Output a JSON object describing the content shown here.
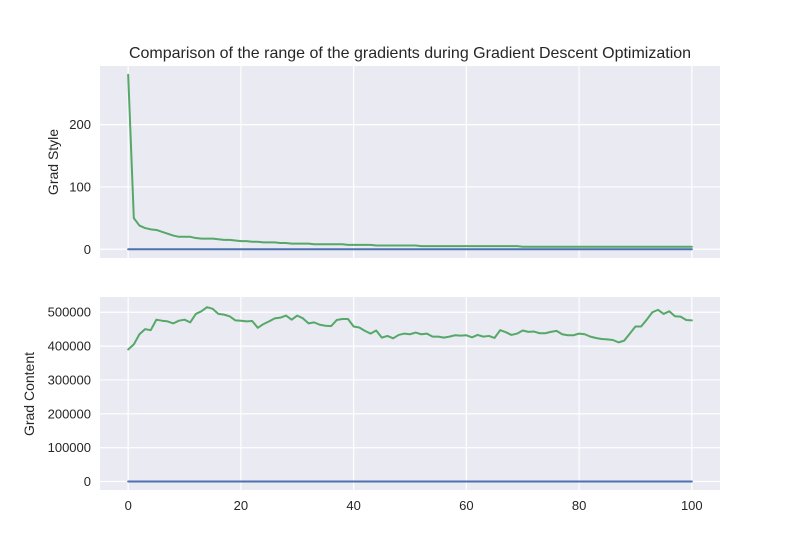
{
  "chart_data": {
    "type": "line",
    "title": "Comparison of the range of the gradients during Gradient Descent Optimization",
    "xlabel": "",
    "xticks": [
      0,
      20,
      40,
      60,
      80,
      100
    ],
    "xlim": [
      -5,
      105
    ],
    "grid": true,
    "colors": {
      "background": "#eaeaf2",
      "grid": "#ffffff",
      "series_near_zero": "#4c72b0",
      "series_grad": "#55a868"
    },
    "subplots": [
      {
        "ylabel": "Grad Style",
        "ylim": [
          -14,
          294
        ],
        "yticks": [
          0,
          100,
          200
        ],
        "series": [
          {
            "color": "#55a868",
            "x": [
              0,
              1,
              2,
              3,
              4,
              5,
              6,
              7,
              8,
              9,
              10,
              11,
              12,
              13,
              14,
              15,
              16,
              17,
              18,
              19,
              20,
              21,
              22,
              23,
              24,
              25,
              26,
              27,
              28,
              29,
              30,
              31,
              32,
              33,
              34,
              35,
              36,
              37,
              38,
              39,
              40,
              41,
              42,
              43,
              44,
              45,
              46,
              47,
              48,
              49,
              50,
              51,
              52,
              53,
              54,
              55,
              56,
              57,
              58,
              59,
              60,
              61,
              62,
              63,
              64,
              65,
              66,
              67,
              68,
              69,
              70,
              71,
              72,
              73,
              74,
              75,
              76,
              77,
              78,
              79,
              80,
              81,
              82,
              83,
              84,
              85,
              86,
              87,
              88,
              89,
              90,
              91,
              92,
              93,
              94,
              95,
              96,
              97,
              98,
              99,
              100
            ],
            "values": [
              280,
              50,
              38,
              34,
              32,
              31,
              28,
              25,
              22,
              20,
              20,
              20,
              18,
              17,
              17,
              17,
              16,
              15,
              15,
              14,
              13,
              13,
              12,
              12,
              11,
              11,
              11,
              10,
              10,
              9,
              9,
              9,
              9,
              8,
              8,
              8,
              8,
              8,
              8,
              7,
              7,
              7,
              7,
              7,
              6,
              6,
              6,
              6,
              6,
              6,
              6,
              6,
              5,
              5,
              5,
              5,
              5,
              5,
              5,
              5,
              5,
              5,
              5,
              5,
              5,
              5,
              5,
              5,
              5,
              5,
              4,
              4,
              4,
              4,
              4,
              4,
              4,
              4,
              4,
              4,
              4,
              4,
              4,
              4,
              4,
              4,
              4,
              4,
              4,
              4,
              4,
              4,
              4,
              4,
              4,
              4,
              4,
              4,
              4,
              4,
              4
            ]
          },
          {
            "color": "#4c72b0",
            "x": [
              0,
              100
            ],
            "values": [
              0,
              0
            ]
          }
        ]
      },
      {
        "ylabel": "Grad Content",
        "ylim": [
          -25000,
          545000
        ],
        "yticks": [
          0,
          100000,
          200000,
          300000,
          400000,
          500000
        ],
        "series": [
          {
            "color": "#55a868",
            "x": [
              0,
              1,
              2,
              3,
              4,
              5,
              6,
              7,
              8,
              9,
              10,
              11,
              12,
              13,
              14,
              15,
              16,
              17,
              18,
              19,
              20,
              21,
              22,
              23,
              24,
              25,
              26,
              27,
              28,
              29,
              30,
              31,
              32,
              33,
              34,
              35,
              36,
              37,
              38,
              39,
              40,
              41,
              42,
              43,
              44,
              45,
              46,
              47,
              48,
              49,
              50,
              51,
              52,
              53,
              54,
              55,
              56,
              57,
              58,
              59,
              60,
              61,
              62,
              63,
              64,
              65,
              66,
              67,
              68,
              69,
              70,
              71,
              72,
              73,
              74,
              75,
              76,
              77,
              78,
              79,
              80,
              81,
              82,
              83,
              84,
              85,
              86,
              87,
              88,
              89,
              90,
              91,
              92,
              93,
              94,
              95,
              96,
              97,
              98,
              99,
              100
            ],
            "values": [
              390000,
              405000,
              435000,
              450000,
              447000,
              478000,
              475000,
              473000,
              467000,
              475000,
              478000,
              470000,
              495000,
              503000,
              515000,
              510000,
              495000,
              493000,
              488000,
              476000,
              475000,
              473000,
              474000,
              454000,
              465000,
              473000,
              482000,
              484000,
              490000,
              478000,
              490000,
              482000,
              467000,
              470000,
              463000,
              460000,
              459000,
              477000,
              480000,
              480000,
              458000,
              455000,
              445000,
              437000,
              446000,
              425000,
              430000,
              423000,
              433000,
              437000,
              435000,
              440000,
              435000,
              437000,
              428000,
              428000,
              425000,
              428000,
              432000,
              431000,
              432000,
              426000,
              433000,
              428000,
              430000,
              424000,
              447000,
              441000,
              433000,
              437000,
              446000,
              442000,
              443000,
              438000,
              438000,
              442000,
              445000,
              435000,
              432000,
              432000,
              437000,
              435000,
              428000,
              424000,
              421000,
              420000,
              418000,
              411000,
              416000,
              437000,
              458000,
              458000,
              478000,
              500000,
              507000,
              495000,
              503000,
              488000,
              487000,
              477000,
              476000
            ]
          },
          {
            "color": "#4c72b0",
            "x": [
              0,
              100
            ],
            "values": [
              0,
              0
            ]
          }
        ]
      }
    ]
  }
}
